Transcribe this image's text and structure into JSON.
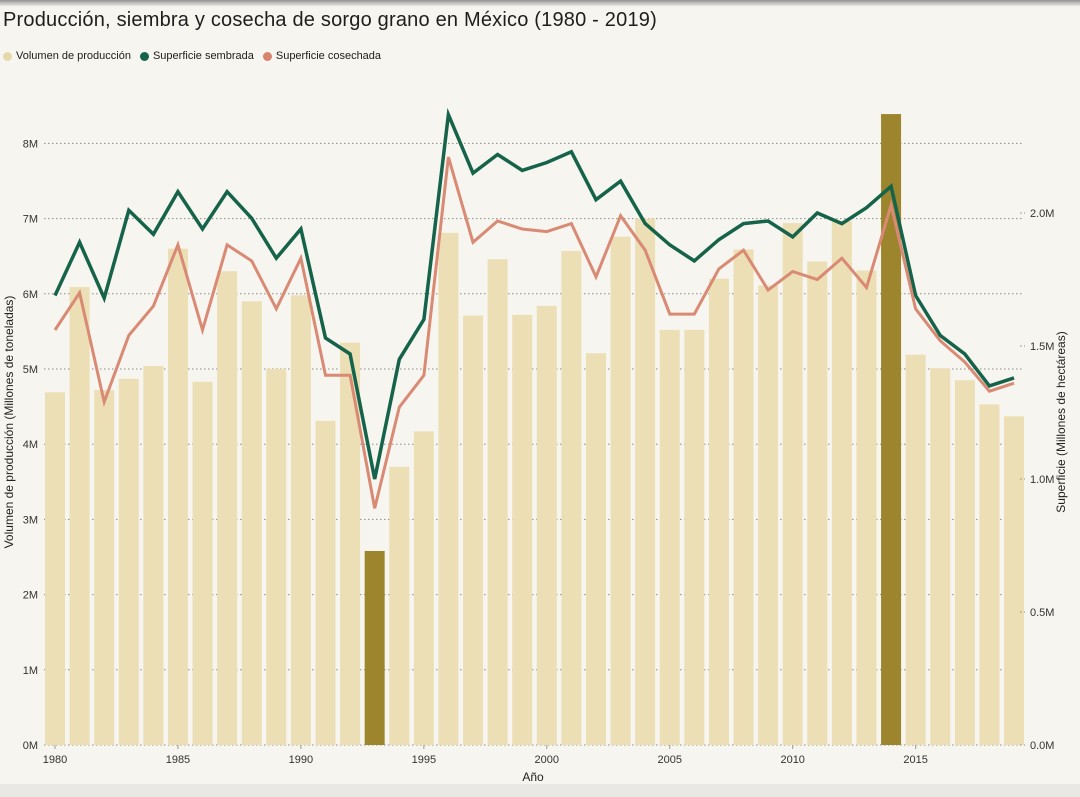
{
  "header": {
    "title": "Producción, siembra y cosecha de sorgo grano en México (1980 - 2019)"
  },
  "legend": {
    "items": [
      {
        "label": "Volumen de producción",
        "color": "#e6d9a9"
      },
      {
        "label": "Superficie sembrada",
        "color": "#15634a"
      },
      {
        "label": "Superficie cosechada",
        "color": "#d9826d"
      }
    ]
  },
  "chart": {
    "left_axis_title": "Volumen de producción (Millones de toneladas)",
    "right_axis_title": "Superficie (Millones de hectáreas)",
    "x_axis_title": "Año"
  },
  "colors": {
    "background": "#f7f5ef",
    "bar": "#ecdfb5",
    "bar_highlight": "#9d852d",
    "line_sembrada": "#15634a",
    "line_cosechada": "#d98a74",
    "gridline": "#8c8c8c",
    "tick_text": "#333333"
  },
  "chart_data": {
    "type": "bar",
    "title": "Producción, siembra y cosecha de sorgo grano en México (1980 - 2019)",
    "xlabel": "Año",
    "grid": "dotted horizontal",
    "legend_position": "top-left",
    "x": [
      1980,
      1981,
      1982,
      1983,
      1984,
      1985,
      1986,
      1987,
      1988,
      1989,
      1990,
      1991,
      1992,
      1993,
      1994,
      1995,
      1996,
      1997,
      1998,
      1999,
      2000,
      2001,
      2002,
      2003,
      2004,
      2005,
      2006,
      2007,
      2008,
      2009,
      2010,
      2011,
      2012,
      2013,
      2014,
      2015,
      2016,
      2017,
      2018,
      2019
    ],
    "x_tick_labels": [
      "1980",
      "1985",
      "1990",
      "1995",
      "2000",
      "2005",
      "2010",
      "2015"
    ],
    "left_axis": {
      "label": "Volumen de producción (Millones de toneladas)",
      "unit": "millones de toneladas",
      "tick_values": [
        0,
        1,
        2,
        3,
        4,
        5,
        6,
        7,
        8
      ],
      "tick_labels": [
        "0M",
        "1M",
        "2M",
        "3M",
        "4M",
        "5M",
        "6M",
        "7M",
        "8M"
      ],
      "range": [
        0,
        8.58
      ]
    },
    "right_axis": {
      "label": "Superficie (Millones de hectáreas)",
      "unit": "millones de hectáreas",
      "tick_values": [
        0,
        0.5,
        1.0,
        1.5,
        2.0
      ],
      "tick_labels": [
        "0.0M",
        "0.5M",
        "1.0M",
        "1.5M",
        "2.0M"
      ],
      "range": [
        0,
        2.42
      ]
    },
    "series": [
      {
        "name": "Volumen de producción",
        "type": "bar",
        "axis": "left",
        "color": "#ecdfb5",
        "highlight_color": "#9d852d",
        "highlighted_years": [
          1993,
          2014
        ],
        "values": [
          4.69,
          6.09,
          4.72,
          4.87,
          5.04,
          6.6,
          4.83,
          6.3,
          5.9,
          5.0,
          5.98,
          4.31,
          5.35,
          2.58,
          3.7,
          4.17,
          6.81,
          5.71,
          6.46,
          5.72,
          5.84,
          6.57,
          5.21,
          6.76,
          7.0,
          5.52,
          5.52,
          6.2,
          6.59,
          6.11,
          6.94,
          6.43,
          6.97,
          6.31,
          8.39,
          5.19,
          5.01,
          4.85,
          4.53,
          4.37
        ]
      },
      {
        "name": "Superficie sembrada",
        "type": "line",
        "axis": "right",
        "color": "#15634a",
        "values": [
          1.69,
          1.89,
          1.68,
          2.01,
          1.92,
          2.08,
          1.94,
          2.08,
          1.98,
          1.83,
          1.94,
          1.53,
          1.47,
          1.0,
          1.45,
          1.6,
          2.37,
          2.15,
          2.22,
          2.16,
          2.19,
          2.23,
          2.05,
          2.12,
          1.96,
          1.88,
          1.82,
          1.9,
          1.96,
          1.97,
          1.91,
          2.0,
          1.96,
          2.02,
          2.1,
          1.69,
          1.54,
          1.47,
          1.35,
          1.38
        ]
      },
      {
        "name": "Superficie cosechada",
        "type": "line",
        "axis": "right",
        "color": "#d98a74",
        "values": [
          1.56,
          1.7,
          1.29,
          1.54,
          1.65,
          1.88,
          1.56,
          1.88,
          1.82,
          1.64,
          1.83,
          1.39,
          1.39,
          0.89,
          1.27,
          1.39,
          2.21,
          1.89,
          1.97,
          1.94,
          1.93,
          1.96,
          1.76,
          1.99,
          1.86,
          1.62,
          1.62,
          1.79,
          1.86,
          1.71,
          1.78,
          1.75,
          1.83,
          1.72,
          2.03,
          1.64,
          1.52,
          1.44,
          1.33,
          1.36
        ]
      }
    ]
  }
}
